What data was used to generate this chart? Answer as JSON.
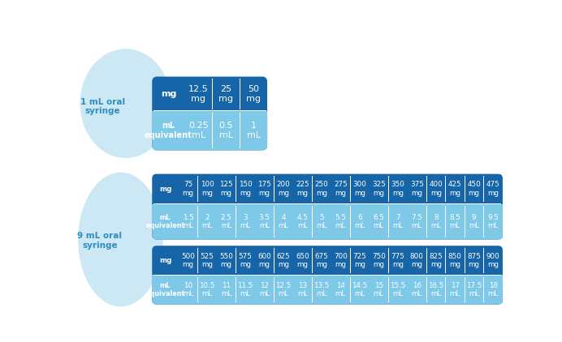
{
  "bg_color": "#ffffff",
  "circle_color": "#cce8f5",
  "dark_blue": "#1565a8",
  "lighter_blue": "#7ec8e8",
  "table1": {
    "label": "1 mL oral\nsyringe",
    "mg_row": [
      "12.5\nmg",
      "25\nmg",
      "50\nmg"
    ],
    "ml_row": [
      "0.25\nmL",
      "0.5\nmL",
      "1\nmL"
    ]
  },
  "table2a": {
    "label": "9 mL oral\nsyringe",
    "mg_row": [
      "75\nmg",
      "100\nmg",
      "125\nmg",
      "150\nmg",
      "175\nmg",
      "200\nmg",
      "225\nmg",
      "250\nmg",
      "275\nmg",
      "300\nmg",
      "325\nmg",
      "350\nmg",
      "375\nmg",
      "400\nmg",
      "425\nmg",
      "450\nmg",
      "475\nmg"
    ],
    "ml_row": [
      "1.5\nmL",
      "2\nmL",
      "2.5\nmL",
      "3\nmL",
      "3.5\nmL",
      "4\nmL",
      "4.5\nmL",
      "5\nmL",
      "5.5\nmL",
      "6\nmL",
      "6.5\nmL",
      "7\nmL",
      "7.5\nmL",
      "8\nmL",
      "8.5\nmL",
      "9\nmL",
      "9.5\nmL"
    ]
  },
  "table2b": {
    "mg_row": [
      "500\nmg",
      "525\nmg",
      "550\nmg",
      "575\nmg",
      "600\nmg",
      "625\nmg",
      "650\nmg",
      "675\nmg",
      "700\nmg",
      "725\nmg",
      "750\nmg",
      "775\nmg",
      "800\nmg",
      "825\nmg",
      "850\nmg",
      "875\nmg",
      "900\nmg"
    ],
    "ml_row": [
      "10\nmL",
      "10.5\nmL",
      "11\nmL",
      "11.5\nmL",
      "12\nmL",
      "12.5\nmL",
      "13\nmL",
      "13.5\nmL",
      "14\nmL",
      "14.5\nmL",
      "15\nmL",
      "15.5\nmL",
      "16\nmL",
      "16.5\nmL",
      "17\nmL",
      "17.5\nmL",
      "18\nmL"
    ]
  },
  "label_color": "#2e8ec0"
}
